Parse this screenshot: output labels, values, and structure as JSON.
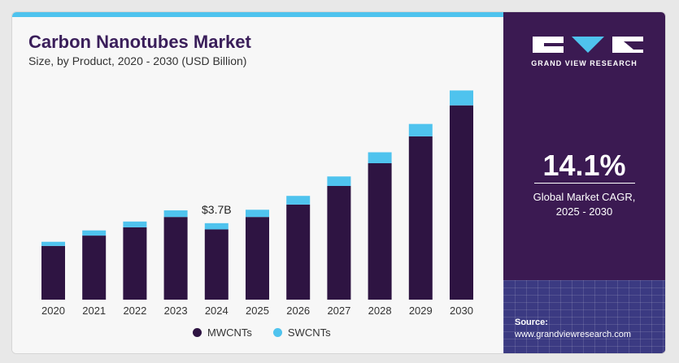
{
  "colors": {
    "mwcnts": "#2e1442",
    "swcnts": "#4fc3ee",
    "accent_bar": "#4fc3ee",
    "side_panel": "#3b1a52"
  },
  "header": {
    "title": "Carbon Nanotubes Market",
    "subtitle": "Size, by Product, 2020 - 2030 (USD Billion)"
  },
  "chart_data": {
    "type": "bar",
    "stacked": true,
    "categories": [
      "2020",
      "2021",
      "2022",
      "2023",
      "2024",
      "2025",
      "2026",
      "2027",
      "2028",
      "2029",
      "2030"
    ],
    "series": [
      {
        "name": "MWCNTs",
        "values": [
          2.6,
          3.1,
          3.5,
          4.0,
          3.4,
          4.0,
          4.6,
          5.5,
          6.6,
          7.9,
          9.4
        ]
      },
      {
        "name": "SWCNTs",
        "values": [
          0.2,
          0.25,
          0.28,
          0.32,
          0.3,
          0.35,
          0.42,
          0.46,
          0.53,
          0.6,
          0.72
        ]
      }
    ],
    "annotations": [
      {
        "category": "2024",
        "text": "$3.7B"
      }
    ],
    "ylim": [
      0,
      11
    ],
    "y_axis_visible": false,
    "grid": false,
    "legend_position": "bottom"
  },
  "legend": {
    "mwcnts_label": "MWCNTs",
    "swcnts_label": "SWCNTs"
  },
  "side_panel": {
    "brand": "GRAND VIEW RESEARCH",
    "cagr_value": "14.1%",
    "cagr_label_line1": "Global Market CAGR,",
    "cagr_label_line2": "2025 - 2030",
    "source_title": "Source:",
    "source_url": "www.grandviewresearch.com"
  }
}
